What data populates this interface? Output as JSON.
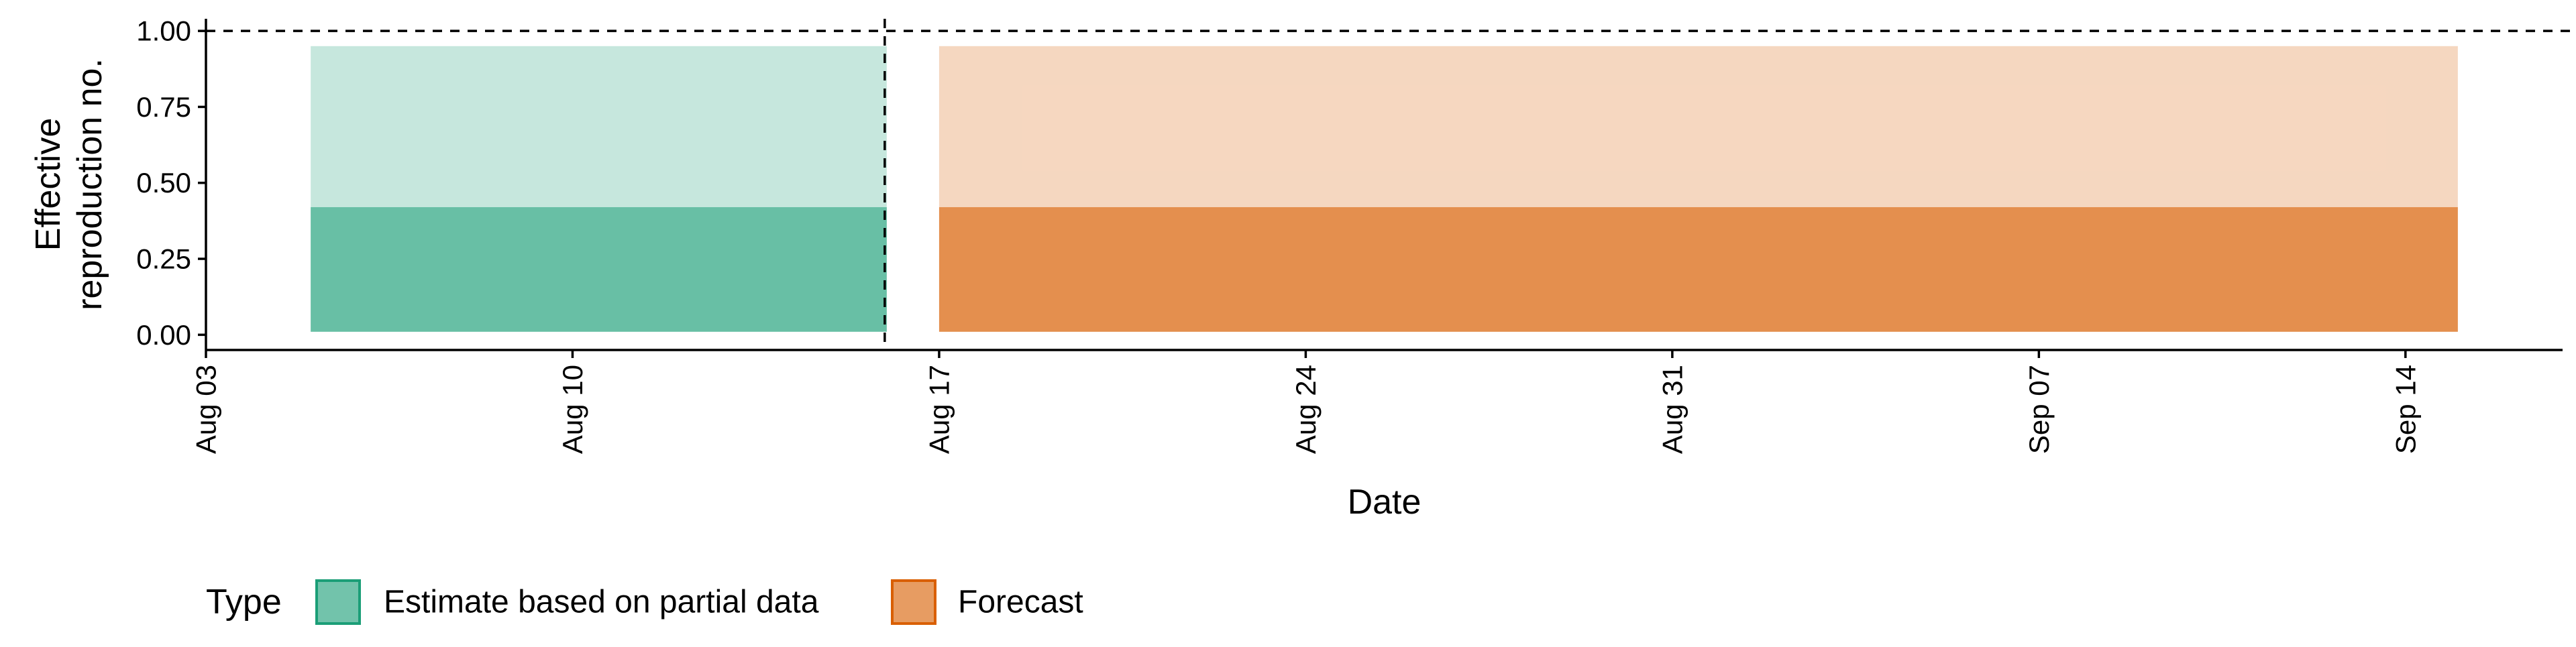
{
  "chart_data": {
    "type": "area",
    "xlabel": "Date",
    "ylabel_lines": [
      "Effective",
      "reproduction no."
    ],
    "x_ticks": [
      "Aug 03",
      "Aug 10",
      "Aug 17",
      "Aug 24",
      "Aug 31",
      "Sep 07",
      "Sep 14"
    ],
    "x_tick_dates": [
      "2020-08-03",
      "2020-08-10",
      "2020-08-17",
      "2020-08-24",
      "2020-08-31",
      "2020-09-07",
      "2020-09-14"
    ],
    "y_ticks": [
      "0.00",
      "0.25",
      "0.50",
      "0.75",
      "1.00"
    ],
    "y_tick_values": [
      0,
      0.25,
      0.5,
      0.75,
      1.0
    ],
    "xlim": [
      "2020-08-03",
      "2020-09-17"
    ],
    "ylim": [
      -0.05,
      1.04
    ],
    "reference_line_y": 1.0,
    "reference_line_x": "2020-08-16",
    "grid": false,
    "legend_position": "bottom-left",
    "legend": {
      "title": "Type",
      "items": [
        {
          "label": "Estimate based on partial data",
          "color": "#1b9e77"
        },
        {
          "label": "Forecast",
          "color": "#d95f02"
        }
      ]
    },
    "series": [
      {
        "name": "Estimate based on partial data",
        "color": "#1b9e77",
        "x_start": "2020-08-05",
        "x_end": "2020-08-16",
        "bands": [
          {
            "lower": 0.01,
            "upper": 0.95,
            "opacity": 0.25
          },
          {
            "lower": 0.01,
            "upper": 0.42,
            "opacity": 0.55
          }
        ]
      },
      {
        "name": "Forecast",
        "color": "#d95f02",
        "x_start": "2020-08-17",
        "x_end": "2020-09-15",
        "bands": [
          {
            "lower": 0.01,
            "upper": 0.95,
            "opacity": 0.25
          },
          {
            "lower": 0.01,
            "upper": 0.42,
            "opacity": 0.6
          }
        ]
      }
    ]
  }
}
